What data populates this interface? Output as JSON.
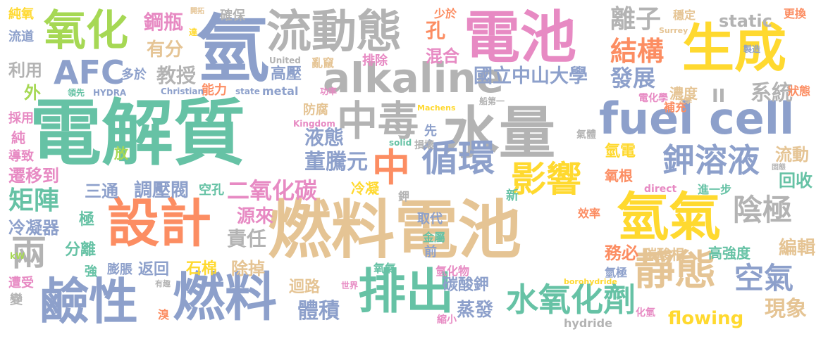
{
  "palette": {
    "teal": "#66c2a5",
    "orange": "#fc8d62",
    "blue": "#8da0cb",
    "pink": "#e78ac3",
    "green": "#a6d854",
    "yellow": "#ffd92f",
    "tan": "#e5c494",
    "gray": "#b3b3b3"
  },
  "words": [
    {
      "text": "電解質",
      "color": "#66c2a5"
    },
    {
      "text": "燃料電池",
      "color": "#e5c494"
    },
    {
      "text": "水量",
      "color": "#b3b3b3"
    },
    {
      "text": "電池",
      "color": "#e78ac3"
    },
    {
      "text": "fuel cell",
      "color": "#8da0cb"
    },
    {
      "text": "氫氣",
      "color": "#ffd92f"
    },
    {
      "text": "設計",
      "color": "#fc8d62"
    },
    {
      "text": "生成",
      "color": "#ffd92f"
    },
    {
      "text": "氫",
      "color": "#8da0cb"
    },
    {
      "text": "流動態",
      "color": "#b3b3b3"
    },
    {
      "text": "alkaline",
      "color": "#b3b3b3"
    },
    {
      "text": "氧化",
      "color": "#a6d854"
    },
    {
      "text": "鹼性",
      "color": "#8da0cb"
    },
    {
      "text": "燃料",
      "color": "#8da0cb"
    },
    {
      "text": "排出",
      "color": "#66c2a5"
    },
    {
      "text": "中毒",
      "color": "#b3b3b3"
    },
    {
      "text": "靜態",
      "color": "#e5c494"
    },
    {
      "text": "中",
      "color": "#fc8d62"
    },
    {
      "text": "循環",
      "color": "#8da0cb"
    },
    {
      "text": "影響",
      "color": "#ffd92f"
    },
    {
      "text": "AFC",
      "color": "#8da0cb"
    },
    {
      "text": "鉀溶液",
      "color": "#8da0cb"
    },
    {
      "text": "水氧化劑",
      "color": "#66c2a5"
    },
    {
      "text": "陰極",
      "color": "#b3b3b3"
    },
    {
      "text": "空氣",
      "color": "#8da0cb"
    },
    {
      "text": "二氧化碳",
      "color": "#e78ac3"
    },
    {
      "text": "兩",
      "color": "#b3b3b3"
    },
    {
      "text": "矩陣",
      "color": "#66c2a5"
    },
    {
      "text": "結構",
      "color": "#fc8d62"
    },
    {
      "text": "離子",
      "color": "#b3b3b3"
    },
    {
      "text": "發展",
      "color": "#8da0cb"
    },
    {
      "text": "國立中山大學",
      "color": "#8da0cb"
    },
    {
      "text": "鋼瓶",
      "color": "#e78ac3"
    },
    {
      "text": "有分",
      "color": "#e5c494"
    },
    {
      "text": "教授",
      "color": "#b3b3b3"
    },
    {
      "text": "static",
      "color": "#b3b3b3"
    },
    {
      "text": "系統",
      "color": "#b3b3b3"
    },
    {
      "text": "II",
      "color": "#b3b3b3"
    },
    {
      "text": "孔",
      "color": "#fc8d62"
    },
    {
      "text": "混合",
      "color": "#e78ac3"
    },
    {
      "text": "高壓",
      "color": "#8da0cb"
    },
    {
      "text": "能力",
      "color": "#fc8d62"
    },
    {
      "text": "液態",
      "color": "#8da0cb"
    },
    {
      "text": "董騰元",
      "color": "#8da0cb"
    },
    {
      "text": "體積",
      "color": "#8da0cb"
    },
    {
      "text": "調壓閥",
      "color": "#8da0cb"
    },
    {
      "text": "三通",
      "color": "#8da0cb"
    },
    {
      "text": "源來",
      "color": "#e78ac3"
    },
    {
      "text": "責任",
      "color": "#b3b3b3"
    },
    {
      "text": "冷凝器",
      "color": "#8da0cb"
    },
    {
      "text": "分離",
      "color": "#66c2a5"
    },
    {
      "text": "返回",
      "color": "#8da0cb"
    },
    {
      "text": "石棉",
      "color": "#ffd92f"
    },
    {
      "text": "除掉",
      "color": "#e5c494"
    },
    {
      "text": "迴路",
      "color": "#e5c494"
    },
    {
      "text": "碳酸鉀",
      "color": "#8da0cb"
    },
    {
      "text": "蒸發",
      "color": "#8da0cb"
    },
    {
      "text": "碳酸根",
      "color": "#e5c494"
    },
    {
      "text": "高強度",
      "color": "#66c2a5"
    },
    {
      "text": "編輯",
      "color": "#e5c494"
    },
    {
      "text": "現象",
      "color": "#e5c494"
    },
    {
      "text": "flowing",
      "color": "#ffd92f"
    },
    {
      "text": "務必",
      "color": "#fc8d62"
    },
    {
      "text": "回收",
      "color": "#66c2a5"
    },
    {
      "text": "流動",
      "color": "#e5c494"
    },
    {
      "text": "濃度",
      "color": "#e5c494"
    },
    {
      "text": "氫電",
      "color": "#ffd92f"
    },
    {
      "text": "氧根",
      "color": "#fc8d62"
    },
    {
      "text": "冷凝",
      "color": "#ffd92f"
    },
    {
      "text": "空孔",
      "color": "#66c2a5"
    },
    {
      "text": "遷移到",
      "color": "#e78ac3"
    },
    {
      "text": "利用",
      "color": "#b3b3b3"
    },
    {
      "text": "流道",
      "color": "#8da0cb"
    },
    {
      "text": "純氧",
      "color": "#ffd92f"
    },
    {
      "text": "外",
      "color": "#a6d854"
    },
    {
      "text": "採用",
      "color": "#e78ac3"
    },
    {
      "text": "純",
      "color": "#e78ac3"
    },
    {
      "text": "導致",
      "color": "#e78ac3"
    },
    {
      "text": "極",
      "color": "#66c2a5"
    },
    {
      "text": "強",
      "color": "#66c2a5"
    },
    {
      "text": "膨脹",
      "color": "#8da0cb"
    },
    {
      "text": "遭受",
      "color": "#e78ac3"
    },
    {
      "text": "變",
      "color": "#b3b3b3"
    },
    {
      "text": "放",
      "color": "#a6d854"
    },
    {
      "text": "多於",
      "color": "#8da0cb"
    },
    {
      "text": "防腐",
      "color": "#e5c494"
    },
    {
      "text": "確保",
      "color": "#b3b3b3"
    },
    {
      "text": "開拓",
      "color": "#e5c494"
    },
    {
      "text": "達",
      "color": "#ffd92f"
    },
    {
      "text": "少於",
      "color": "#fc8d62"
    },
    {
      "text": "穩定",
      "color": "#e5c494"
    },
    {
      "text": "更換",
      "color": "#fc8d62"
    },
    {
      "text": "排除",
      "color": "#e78ac3"
    },
    {
      "text": "亂竄",
      "color": "#e5c494"
    },
    {
      "text": "功率",
      "color": "#e78ac3"
    },
    {
      "text": "metal",
      "color": "#8da0cb"
    },
    {
      "text": "state",
      "color": "#8da0cb"
    },
    {
      "text": "先",
      "color": "#8da0cb"
    },
    {
      "text": "損壞",
      "color": "#b3b3b3"
    },
    {
      "text": "取代",
      "color": "#8da0cb"
    },
    {
      "text": "金屬",
      "color": "#66c2a5"
    },
    {
      "text": "前",
      "color": "#8da0cb"
    },
    {
      "text": "新",
      "color": "#66c2a5"
    },
    {
      "text": "效率",
      "color": "#fc8d62"
    },
    {
      "text": "氧氣",
      "color": "#66c2a5"
    },
    {
      "text": "氫化物",
      "color": "#e78ac3"
    },
    {
      "text": "氫極",
      "color": "#8da0cb"
    },
    {
      "text": "進一步",
      "color": "#66c2a5"
    },
    {
      "text": "補充",
      "color": "#fc8d62"
    },
    {
      "text": "電化學",
      "color": "#e78ac3"
    },
    {
      "text": "狀態",
      "color": "#fc8d62"
    },
    {
      "text": "氣體",
      "color": "#b3b3b3"
    },
    {
      "text": "縮小",
      "color": "#e78ac3"
    },
    {
      "text": "溴",
      "color": "#fc8d62"
    },
    {
      "text": "鉀",
      "color": "#b3b3b3"
    },
    {
      "text": "化氫",
      "color": "#e78ac3"
    },
    {
      "text": "direct",
      "color": "#e78ac3"
    },
    {
      "text": "hydride",
      "color": "#b3b3b3"
    },
    {
      "text": "borohydride",
      "color": "#ffd92f"
    },
    {
      "text": "solid",
      "color": "#66c2a5"
    },
    {
      "text": "Kingdom",
      "color": "#e78ac3"
    },
    {
      "text": "Machens",
      "color": "#ffd92f"
    },
    {
      "text": "Christian",
      "color": "#8da0cb"
    },
    {
      "text": "United",
      "color": "#b3b3b3"
    },
    {
      "text": "Surrey",
      "color": "#e5c494"
    },
    {
      "text": "HYDRA",
      "color": "#8da0cb"
    },
    {
      "text": "kW",
      "color": "#a6d854"
    },
    {
      "text": "領先",
      "color": "#66c2a5"
    },
    {
      "text": "世界",
      "color": "#e78ac3"
    },
    {
      "text": "有趣",
      "color": "#b3b3b3"
    },
    {
      "text": "製造",
      "color": "#8da0cb"
    },
    {
      "text": "第一",
      "color": "#b3b3b3"
    },
    {
      "text": "船",
      "color": "#b3b3b3"
    },
    {
      "text": "大學",
      "color": "#e5c494"
    },
    {
      "text": "固態",
      "color": "#b3b3b3"
    }
  ]
}
